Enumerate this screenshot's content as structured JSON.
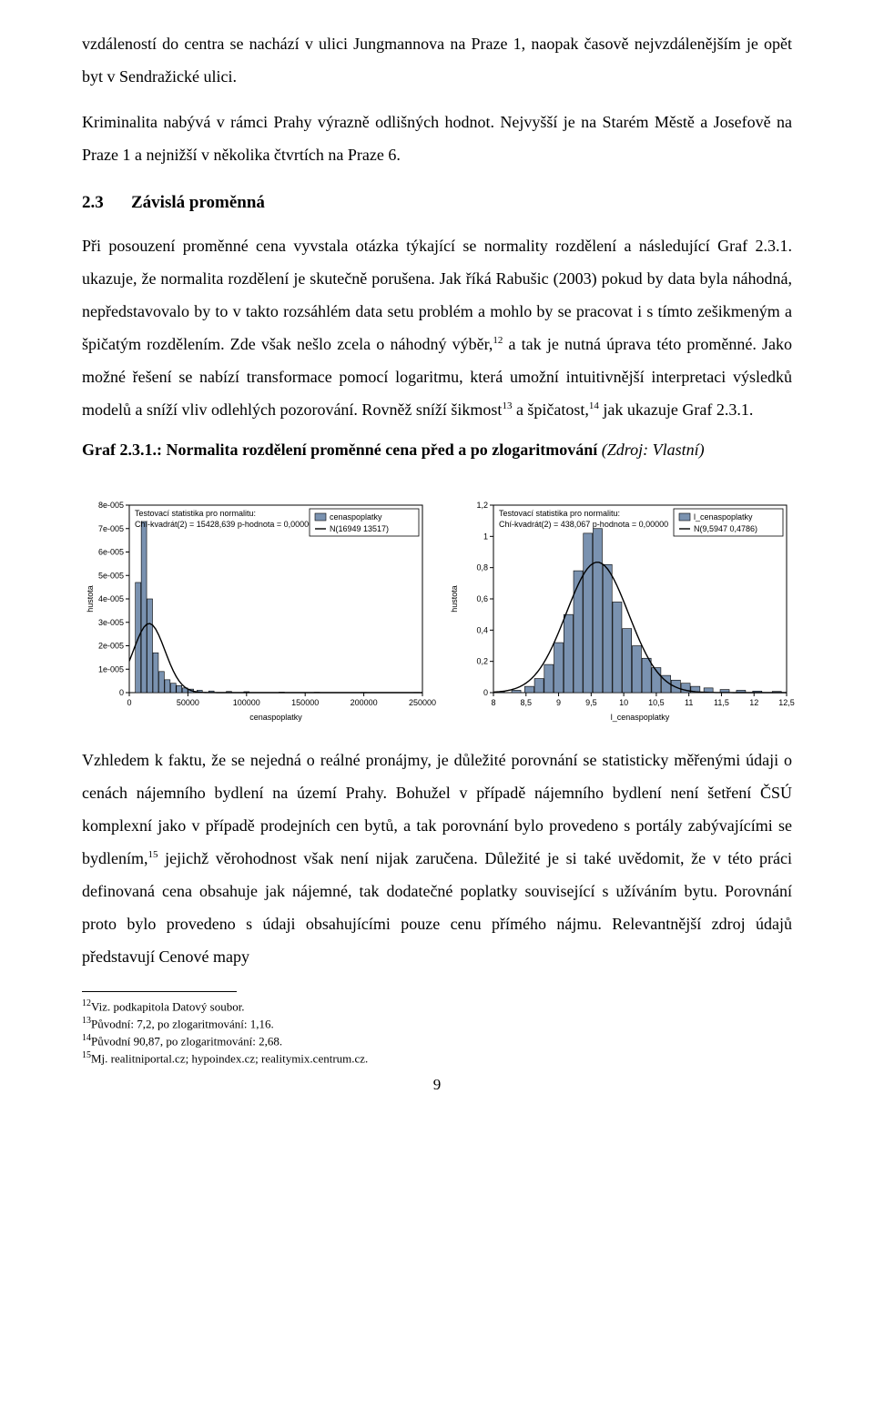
{
  "para1": "vzdáleností do centra se nachází v ulici Jungmannova na Praze 1, naopak časově nejvzdálenějším je opět byt v Sendražické ulici.",
  "para2": "Kriminalita nabývá v rámci Prahy výrazně odlišných hodnot. Nejvyšší je na Starém Městě a Josefově na Praze 1 a nejnižší v několika čtvrtích na Praze 6.",
  "section": {
    "num": "2.3",
    "title": "Závislá proměnná"
  },
  "para3_a": "Při posouzení proměnné cena vyvstala otázka týkající se normality rozdělení a následující Graf 2.3.1. ukazuje, že normalita rozdělení je skutečně porušena. Jak říká Rabušic (2003) pokud by data byla náhodná, nepředstavovalo by to v takto rozsáhlém data setu problém a mohlo by se pracovat i s tímto zešikmeným a špičatým rozdělením. Zde však nešlo zcela o náhodný výběr,",
  "fn12": "12",
  "para3_b": " a tak je nutná úprava této proměnné. Jako možné řešení se nabízí transformace pomocí logaritmu, která umožní intuitivnější interpretaci výsledků modelů a sníží vliv odlehlých pozorování. Rovněž sníží šikmost",
  "fn13": "13",
  "para3_c": " a špičatost,",
  "fn14": "14",
  "para3_d": " jak ukazuje Graf 2.3.1.",
  "graf_title": {
    "bold": "Graf 2.3.1.: Normalita rozdělení proměnné cena před a po zlogaritmování ",
    "italic": "(Zdroj: Vlastní)"
  },
  "chart_left": {
    "type": "histogram_with_normal",
    "stat_line1": "Testovací statistika pro normalitu:",
    "stat_line2": "Chí-kvadrát(2) = 15428,639 p-hodnota = 0,00000",
    "legend_items": [
      "cenaspoplatky",
      "N(16949 13517)"
    ],
    "xlabel": "cenaspoplatky",
    "ylabel": "hustota",
    "xlim": [
      0,
      250000
    ],
    "ylim": [
      0,
      8e-05
    ],
    "xticks": [
      0,
      50000,
      100000,
      150000,
      200000,
      250000
    ],
    "xtick_labels": [
      "0",
      "50000",
      "100000",
      "150000",
      "200000",
      "250000"
    ],
    "yticks": [
      0,
      1e-05,
      2e-05,
      3e-05,
      4e-05,
      5e-05,
      6e-05,
      7e-05,
      8e-05
    ],
    "ytick_labels": [
      "0",
      "1e-005",
      "2e-005",
      "3e-005",
      "4e-005",
      "5e-005",
      "6e-005",
      "7e-005",
      "8e-005"
    ],
    "bars": [
      {
        "x_mid": 7500,
        "h": 4.7e-05
      },
      {
        "x_mid": 12500,
        "h": 7.3e-05
      },
      {
        "x_mid": 17500,
        "h": 4e-05
      },
      {
        "x_mid": 22500,
        "h": 1.7e-05
      },
      {
        "x_mid": 27500,
        "h": 9e-06
      },
      {
        "x_mid": 32500,
        "h": 5.5e-06
      },
      {
        "x_mid": 37500,
        "h": 4e-06
      },
      {
        "x_mid": 42500,
        "h": 3e-06
      },
      {
        "x_mid": 47500,
        "h": 2e-06
      },
      {
        "x_mid": 52500,
        "h": 1.5e-06
      },
      {
        "x_mid": 60000,
        "h": 1e-06
      },
      {
        "x_mid": 70000,
        "h": 7e-07
      },
      {
        "x_mid": 85000,
        "h": 5e-07
      },
      {
        "x_mid": 100000,
        "h": 4e-07
      },
      {
        "x_mid": 130000,
        "h": 2e-07
      },
      {
        "x_mid": 160000,
        "h": 1.5e-07
      },
      {
        "x_mid": 200000,
        "h": 1e-07
      },
      {
        "x_mid": 245000,
        "h": 1e-07
      }
    ],
    "bar_width_data": 4600,
    "bar_color": "#7a92b0",
    "bar_border": "#000000",
    "normal": {
      "mu": 16949,
      "sigma": 13517,
      "amp": 2.95e-05,
      "color": "#000000",
      "width": 1.4
    },
    "axis_color": "#000000",
    "text_color": "#000000",
    "font_size_axis": 9,
    "font_size_legend": 9
  },
  "chart_right": {
    "type": "histogram_with_normal",
    "stat_line1": "Testovací statistika pro normalitu:",
    "stat_line2": "Chí-kvadrát(2) = 438,067 p-hodnota = 0,00000",
    "legend_items": [
      "l_cenaspoplatky",
      "N(9,5947 0,4786)"
    ],
    "xlabel": "l_cenaspoplatky",
    "ylabel": "hustota",
    "xlim": [
      8,
      12.5
    ],
    "ylim": [
      0,
      1.2
    ],
    "xticks": [
      8,
      8.5,
      9,
      9.5,
      10,
      10.5,
      11,
      11.5,
      12,
      12.5
    ],
    "xtick_labels": [
      "8",
      "8,5",
      "9",
      "9,5",
      "10",
      "10,5",
      "11",
      "11,5",
      "12",
      "12,5"
    ],
    "yticks": [
      0,
      0.2,
      0.4,
      0.6,
      0.8,
      1.0,
      1.2
    ],
    "ytick_labels": [
      "0",
      "0,2",
      "0,4",
      "0,6",
      "0,8",
      "1",
      "1,2"
    ],
    "bars": [
      {
        "x_mid": 8.1,
        "h": 0.005
      },
      {
        "x_mid": 8.35,
        "h": 0.015
      },
      {
        "x_mid": 8.55,
        "h": 0.04
      },
      {
        "x_mid": 8.7,
        "h": 0.09
      },
      {
        "x_mid": 8.85,
        "h": 0.18
      },
      {
        "x_mid": 9.0,
        "h": 0.32
      },
      {
        "x_mid": 9.15,
        "h": 0.5
      },
      {
        "x_mid": 9.3,
        "h": 0.78
      },
      {
        "x_mid": 9.45,
        "h": 1.02
      },
      {
        "x_mid": 9.6,
        "h": 1.05
      },
      {
        "x_mid": 9.75,
        "h": 0.82
      },
      {
        "x_mid": 9.9,
        "h": 0.58
      },
      {
        "x_mid": 10.05,
        "h": 0.41
      },
      {
        "x_mid": 10.2,
        "h": 0.3
      },
      {
        "x_mid": 10.35,
        "h": 0.22
      },
      {
        "x_mid": 10.5,
        "h": 0.16
      },
      {
        "x_mid": 10.65,
        "h": 0.11
      },
      {
        "x_mid": 10.8,
        "h": 0.08
      },
      {
        "x_mid": 10.95,
        "h": 0.06
      },
      {
        "x_mid": 11.1,
        "h": 0.04
      },
      {
        "x_mid": 11.3,
        "h": 0.03
      },
      {
        "x_mid": 11.55,
        "h": 0.02
      },
      {
        "x_mid": 11.8,
        "h": 0.015
      },
      {
        "x_mid": 12.05,
        "h": 0.01
      },
      {
        "x_mid": 12.35,
        "h": 0.008
      }
    ],
    "bar_width_data": 0.14,
    "bar_color": "#7a92b0",
    "bar_border": "#000000",
    "normal": {
      "mu": 9.5947,
      "sigma": 0.4786,
      "amp": 0.835,
      "color": "#000000",
      "width": 1.4
    },
    "axis_color": "#000000",
    "text_color": "#000000",
    "font_size_axis": 9,
    "font_size_legend": 9
  },
  "para4_a": "Vzhledem k faktu, že se nejedná o reálné pronájmy, je důležité porovnání se statisticky měřenými údaji o cenách nájemního bydlení na území Prahy. Bohužel v případě nájemního bydlení není šetření ČSÚ komplexní jako v případě prodejních cen bytů, a tak porovnání bylo provedeno s portály zabývajícími se bydlením,",
  "fn15": "15",
  "para4_b": " jejichž věrohodnost však není nijak zaručena. Důležité je si také uvědomit, že v této práci definovaná cena obsahuje jak nájemné, tak dodatečné poplatky související s užíváním bytu. Porovnání proto bylo provedeno s údaji obsahujícími pouze cenu přímého nájmu.  Relevantnější zdroj údajů představují Cenové mapy",
  "footnotes": {
    "f12": "Viz. podkapitola Datový soubor.",
    "f13": "Původní: 7,2, po zlogaritmování: 1,16.",
    "f14": "Původní 90,87, po zlogaritmování: 2,68.",
    "f15": "Mj. realitniportal.cz; hypoindex.cz; realitymix.centrum.cz."
  },
  "page_number": "9"
}
